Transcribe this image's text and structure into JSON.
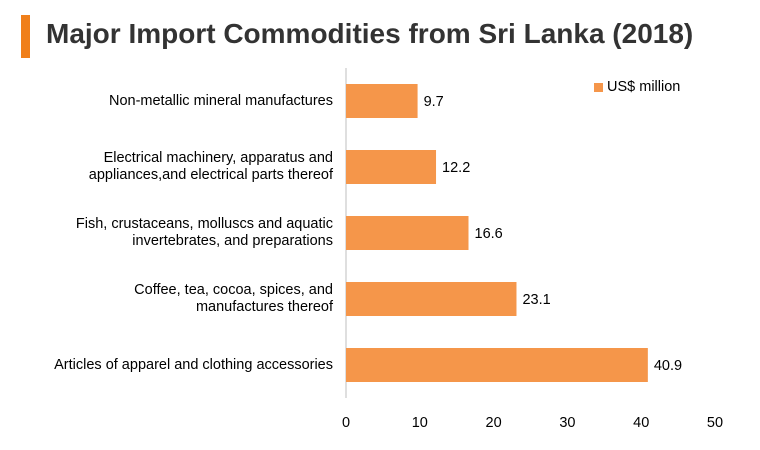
{
  "header": {
    "title": "Major Import Commodities from Sri Lanka (2018)",
    "accent_color": "#f07f1a"
  },
  "chart_data": {
    "type": "bar",
    "orientation": "horizontal",
    "title": "Major Import Commodities from Sri Lanka (2018)",
    "xlabel": "",
    "ylabel": "",
    "xlim": [
      0,
      50
    ],
    "x_ticks": [
      "0",
      "10",
      "20",
      "30",
      "40",
      "50"
    ],
    "grid": false,
    "legend_position": "top-right",
    "bar_color": "#f5964a",
    "categories": [
      [
        "Non-metallic mineral manufactures"
      ],
      [
        "Electrical machinery, apparatus and",
        "appliances,and electrical parts thereof"
      ],
      [
        "Fish, crustaceans, molluscs and aquatic",
        "invertebrates, and preparations"
      ],
      [
        "Coffee, tea, cocoa, spices, and",
        "manufactures thereof"
      ],
      [
        "Articles of apparel and clothing accessories"
      ]
    ],
    "series": [
      {
        "name": "US$ million",
        "values": [
          9.7,
          12.2,
          16.6,
          23.1,
          40.9
        ],
        "labels": [
          "9.7",
          "12.2",
          "16.6",
          "23.1",
          "40.9"
        ]
      }
    ]
  }
}
